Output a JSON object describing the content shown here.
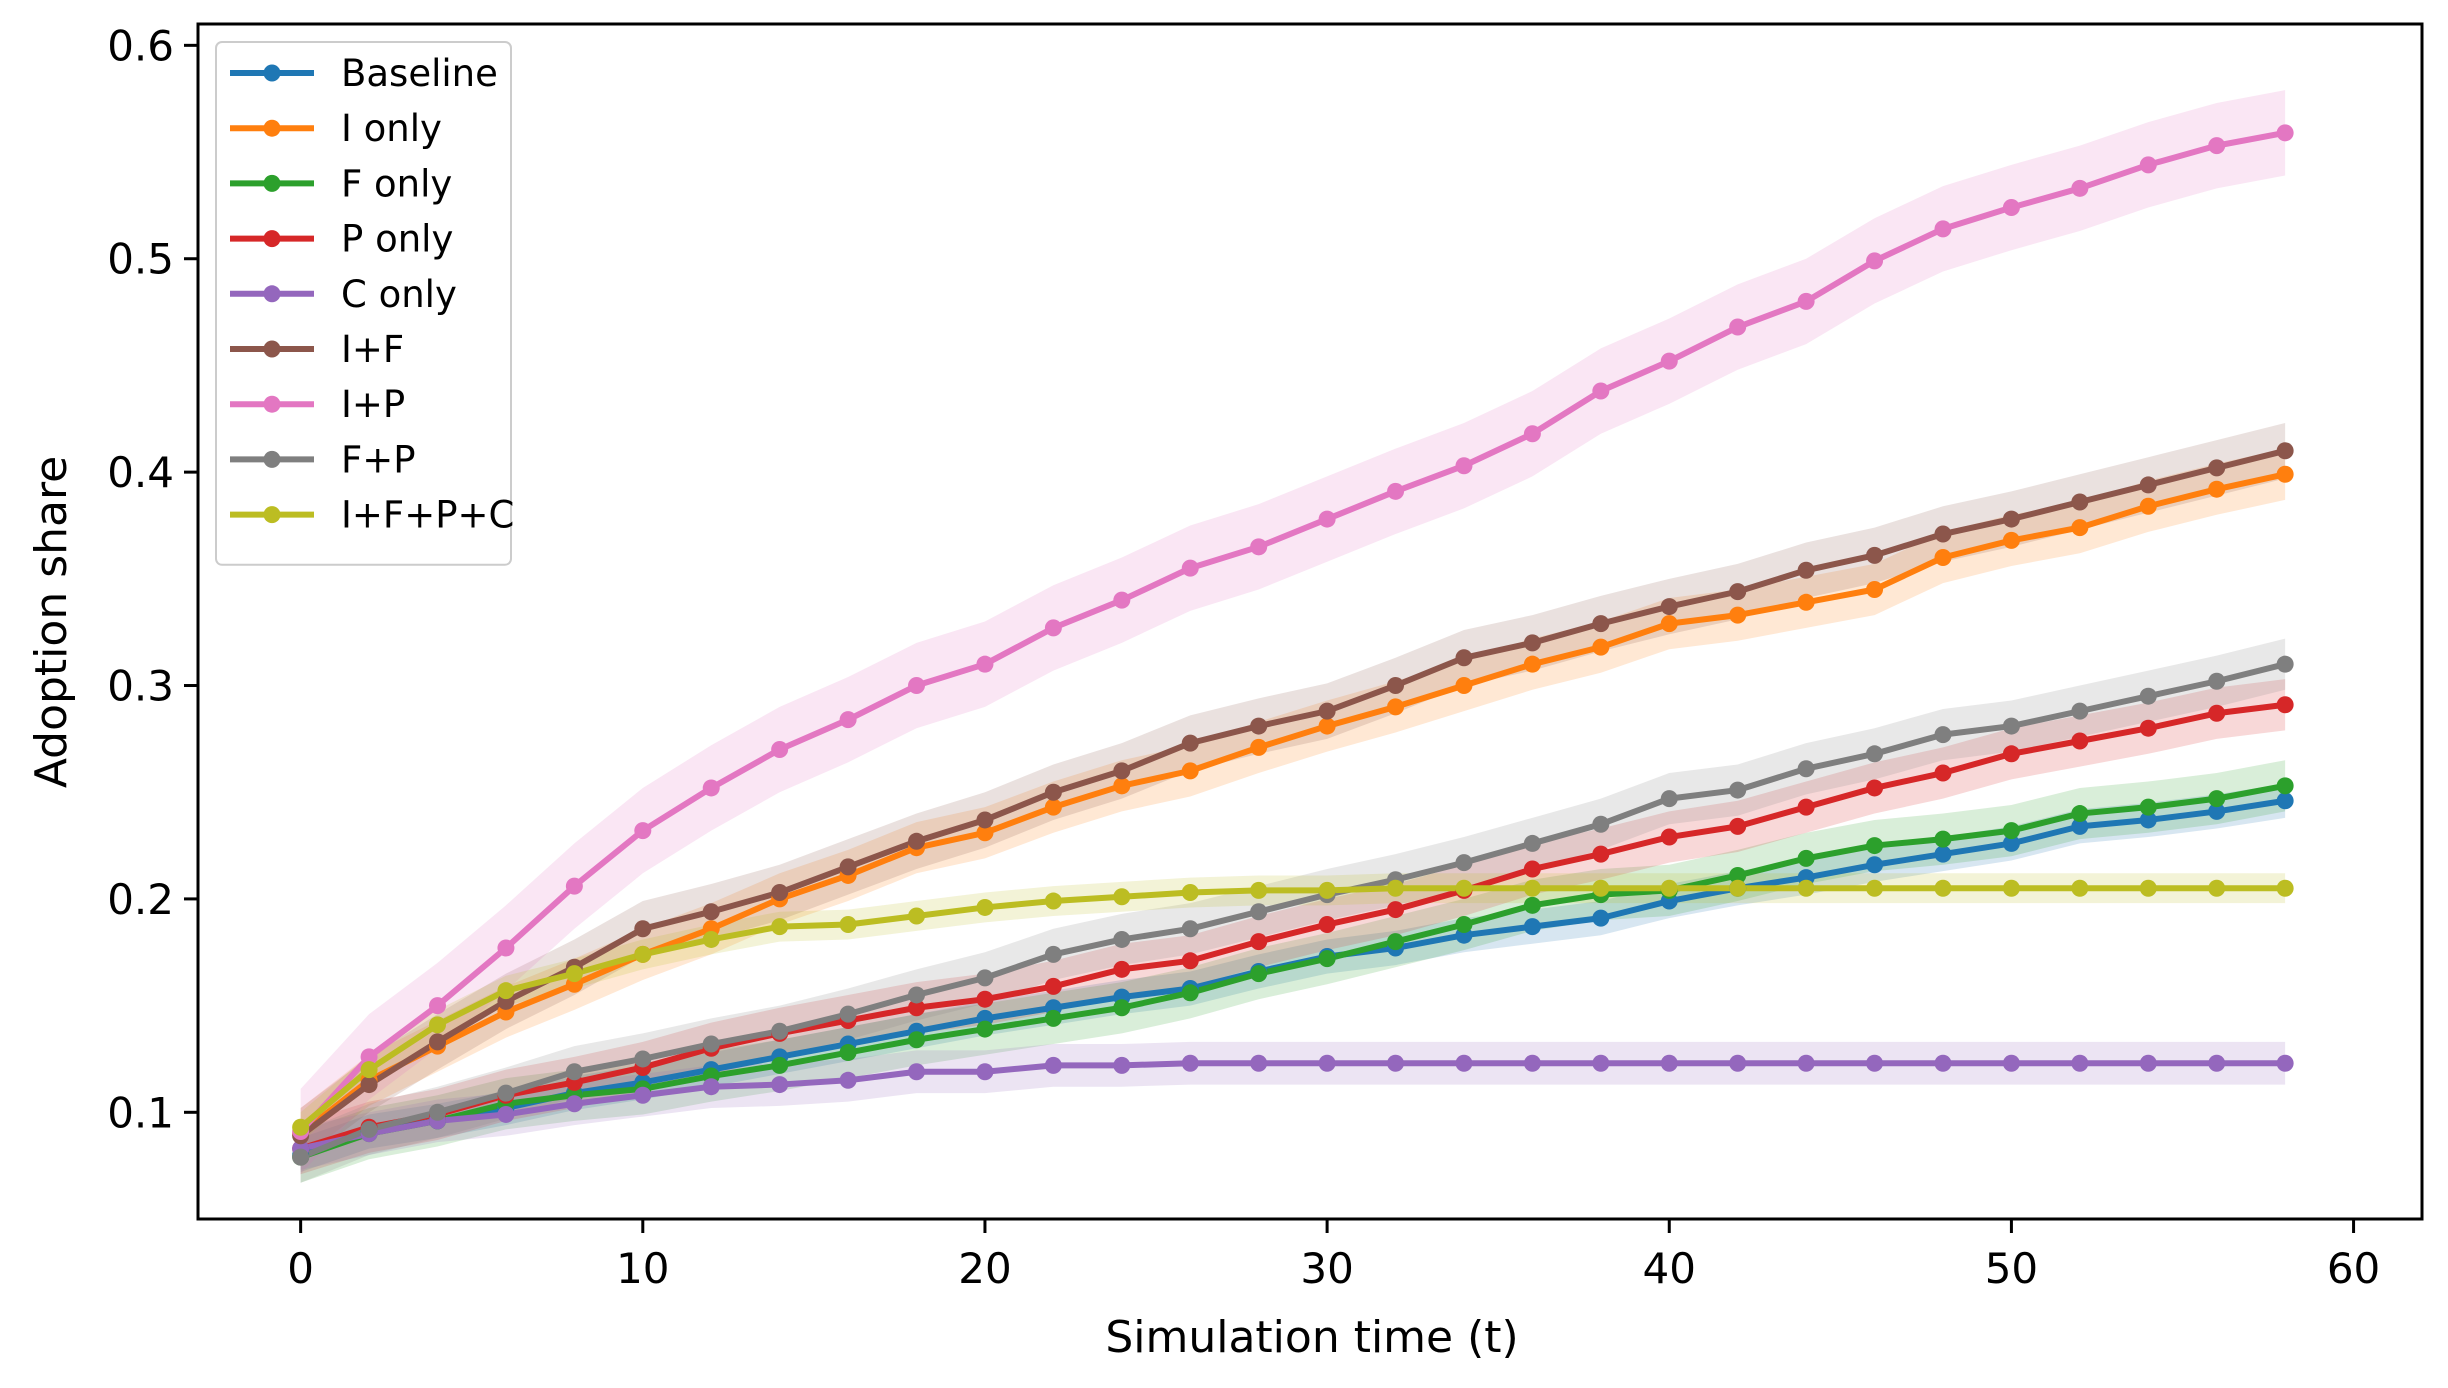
{
  "chart_data": {
    "type": "line",
    "title": "",
    "xlabel": "Simulation time (t)",
    "ylabel": "Adoption share",
    "xlim": [
      -3,
      62
    ],
    "ylim": [
      0.05,
      0.61
    ],
    "xticks": [
      0,
      10,
      20,
      30,
      40,
      50,
      60
    ],
    "xtick_labels": [
      "0",
      "10",
      "20",
      "30",
      "40",
      "50",
      "60"
    ],
    "yticks": [
      0.1,
      0.2,
      0.3,
      0.4,
      0.5,
      0.6
    ],
    "ytick_labels": [
      "0.1",
      "0.2",
      "0.3",
      "0.4",
      "0.5",
      "0.6"
    ],
    "grid": false,
    "legend_position": "top-left",
    "x": [
      0,
      2,
      4,
      6,
      8,
      10,
      12,
      14,
      16,
      18,
      20,
      22,
      24,
      26,
      28,
      30,
      32,
      34,
      36,
      38,
      40,
      42,
      44,
      46,
      48,
      50,
      52,
      54,
      56,
      58
    ],
    "series": [
      {
        "name": "Baseline",
        "color": "#1f77b4",
        "band": 0.008,
        "values": [
          0.08,
          0.091,
          0.096,
          0.102,
          0.109,
          0.114,
          0.12,
          0.126,
          0.132,
          0.138,
          0.144,
          0.149,
          0.154,
          0.158,
          0.166,
          0.173,
          0.177,
          0.183,
          0.187,
          0.191,
          0.199,
          0.205,
          0.21,
          0.216,
          0.221,
          0.226,
          0.234,
          0.237,
          0.241,
          0.246
        ]
      },
      {
        "name": "I only",
        "color": "#ff7f0e",
        "band": 0.012,
        "values": [
          0.09,
          0.115,
          0.131,
          0.147,
          0.16,
          0.174,
          0.186,
          0.2,
          0.211,
          0.224,
          0.231,
          0.243,
          0.253,
          0.26,
          0.271,
          0.281,
          0.29,
          0.3,
          0.31,
          0.318,
          0.329,
          0.333,
          0.339,
          0.345,
          0.36,
          0.368,
          0.374,
          0.384,
          0.392,
          0.399
        ]
      },
      {
        "name": "F only",
        "color": "#2ca02c",
        "band": 0.012,
        "values": [
          0.079,
          0.09,
          0.096,
          0.104,
          0.108,
          0.111,
          0.117,
          0.122,
          0.128,
          0.134,
          0.139,
          0.144,
          0.149,
          0.156,
          0.165,
          0.172,
          0.18,
          0.188,
          0.197,
          0.202,
          0.204,
          0.211,
          0.219,
          0.225,
          0.228,
          0.232,
          0.24,
          0.243,
          0.247,
          0.253
        ]
      },
      {
        "name": "P only",
        "color": "#d62728",
        "band": 0.012,
        "values": [
          0.083,
          0.093,
          0.099,
          0.108,
          0.114,
          0.121,
          0.13,
          0.137,
          0.143,
          0.149,
          0.153,
          0.159,
          0.167,
          0.171,
          0.18,
          0.188,
          0.195,
          0.204,
          0.214,
          0.221,
          0.229,
          0.234,
          0.243,
          0.252,
          0.259,
          0.268,
          0.274,
          0.28,
          0.287,
          0.291
        ]
      },
      {
        "name": "C only",
        "color": "#9467bd",
        "band": 0.01,
        "values": [
          0.083,
          0.09,
          0.096,
          0.099,
          0.104,
          0.108,
          0.112,
          0.113,
          0.115,
          0.119,
          0.119,
          0.122,
          0.122,
          0.123,
          0.123,
          0.123,
          0.123,
          0.123,
          0.123,
          0.123,
          0.123,
          0.123,
          0.123,
          0.123,
          0.123,
          0.123,
          0.123,
          0.123,
          0.123,
          0.123
        ]
      },
      {
        "name": "I+F",
        "color": "#8c564b",
        "band": 0.013,
        "values": [
          0.089,
          0.113,
          0.133,
          0.152,
          0.168,
          0.186,
          0.194,
          0.203,
          0.215,
          0.227,
          0.237,
          0.25,
          0.26,
          0.273,
          0.281,
          0.288,
          0.3,
          0.313,
          0.32,
          0.329,
          0.337,
          0.344,
          0.354,
          0.361,
          0.371,
          0.378,
          0.386,
          0.394,
          0.402,
          0.41
        ]
      },
      {
        "name": "I+P",
        "color": "#e377c2",
        "band": 0.02,
        "values": [
          0.091,
          0.126,
          0.15,
          0.177,
          0.206,
          0.232,
          0.252,
          0.27,
          0.284,
          0.3,
          0.31,
          0.327,
          0.34,
          0.355,
          0.365,
          0.378,
          0.391,
          0.403,
          0.418,
          0.438,
          0.452,
          0.468,
          0.48,
          0.499,
          0.514,
          0.524,
          0.533,
          0.544,
          0.553,
          0.559
        ]
      },
      {
        "name": "F+P",
        "color": "#7f7f7f",
        "band": 0.012,
        "values": [
          0.079,
          0.092,
          0.1,
          0.109,
          0.119,
          0.125,
          0.132,
          0.138,
          0.146,
          0.155,
          0.163,
          0.174,
          0.181,
          0.186,
          0.194,
          0.202,
          0.209,
          0.217,
          0.226,
          0.235,
          0.247,
          0.251,
          0.261,
          0.268,
          0.277,
          0.281,
          0.288,
          0.295,
          0.302,
          0.31
        ]
      },
      {
        "name": "I+F+P+C",
        "color": "#bcbd22",
        "band": 0.007,
        "values": [
          0.093,
          0.12,
          0.141,
          0.157,
          0.165,
          0.174,
          0.181,
          0.187,
          0.188,
          0.192,
          0.196,
          0.199,
          0.201,
          0.203,
          0.204,
          0.204,
          0.205,
          0.205,
          0.205,
          0.205,
          0.205,
          0.205,
          0.205,
          0.205,
          0.205,
          0.205,
          0.205,
          0.205,
          0.205,
          0.205
        ]
      }
    ]
  }
}
